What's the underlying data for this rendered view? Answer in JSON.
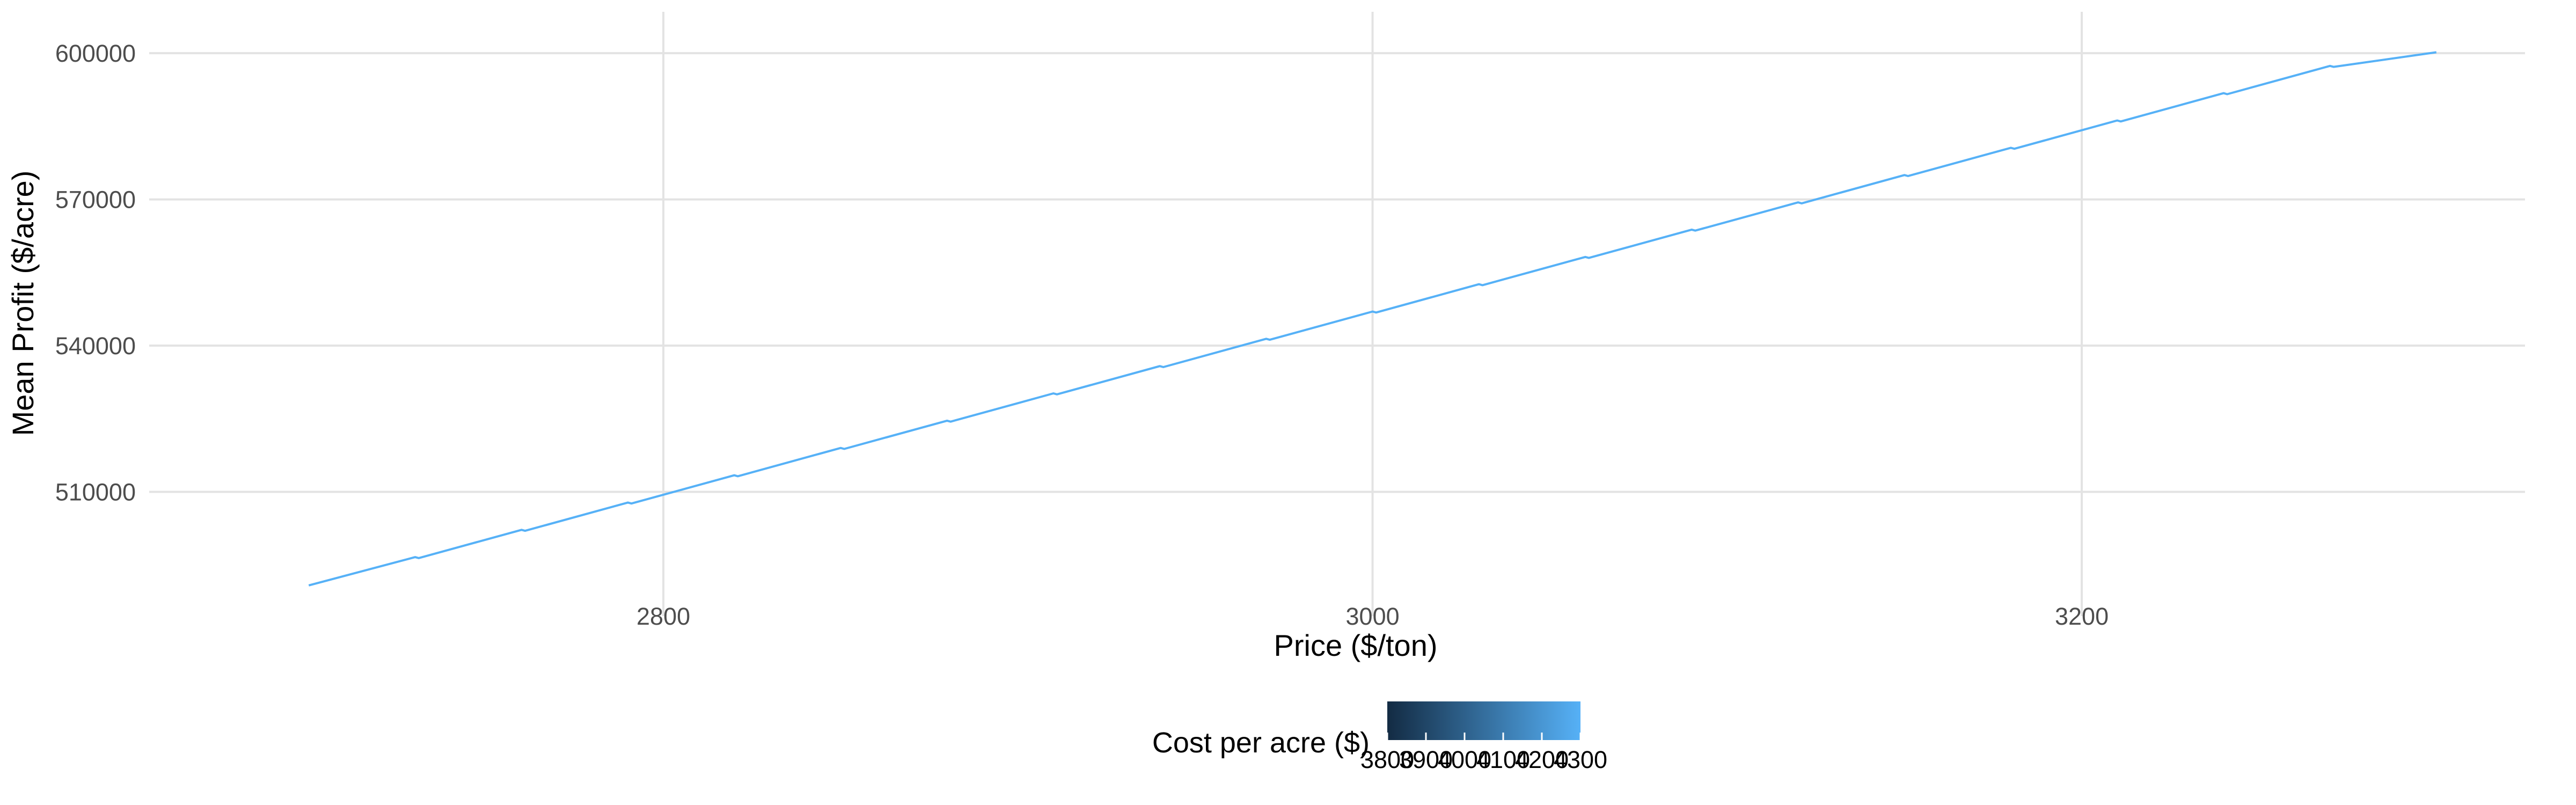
{
  "chart_data": {
    "type": "line",
    "title": "",
    "xlabel": "Price ($/ton)",
    "ylabel": "Mean Profit ($/acre)",
    "xlim": [
      2655,
      3325
    ],
    "ylim": [
      484500,
      608500
    ],
    "x_ticks": [
      2800,
      3000,
      3200
    ],
    "x_tick_labels": [
      "2800",
      "3000",
      "3200"
    ],
    "y_ticks": [
      510000,
      540000,
      570000,
      600000
    ],
    "y_tick_labels": [
      "510000",
      "540000",
      "570000",
      "600000"
    ],
    "grid": true,
    "line_color": "#56b1f7",
    "series": [
      {
        "x": [
          2700,
          2730,
          2731,
          2760,
          2761,
          2790,
          2791,
          2820,
          2821,
          2850,
          2851,
          2880,
          2881,
          2910,
          2911,
          2940,
          2941,
          2970,
          2971,
          3000,
          3001,
          3030,
          3031,
          3060,
          3061,
          3090,
          3091,
          3120,
          3121,
          3150,
          3151,
          3180,
          3181,
          3210,
          3211,
          3240,
          3241,
          3270,
          3271,
          3300
        ],
        "y": [
          490800,
          496600,
          496400,
          502200,
          502000,
          507800,
          507600,
          513400,
          513200,
          519000,
          518800,
          524600,
          524400,
          530200,
          530000,
          535800,
          535600,
          541400,
          541200,
          547000,
          546800,
          552600,
          552400,
          558200,
          558000,
          563800,
          563600,
          569400,
          569200,
          575000,
          574800,
          580600,
          580400,
          586200,
          586000,
          591800,
          591600,
          597400,
          597200,
          600200
        ]
      }
    ],
    "legend": {
      "title": "Cost per acre ($)",
      "position": "bottom",
      "range": [
        3800,
        4300
      ],
      "ticks": [
        3800,
        3900,
        4000,
        4100,
        4200,
        4300
      ],
      "tick_labels": [
        "3800",
        "3900",
        "4000",
        "4100",
        "4200",
        "4300"
      ],
      "gradient_low": "#132b43",
      "gradient_high": "#56b1f7"
    }
  }
}
